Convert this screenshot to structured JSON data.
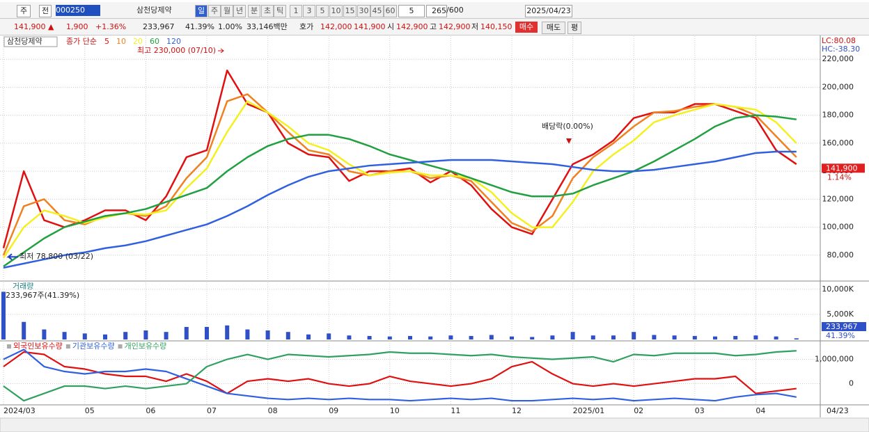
{
  "toolbar": {
    "row1": [
      "주",
      "전",
      "000250",
      "삼천당제약",
      "일",
      "주",
      "월",
      "년",
      "분",
      "초",
      "틱",
      "1",
      "3",
      "5",
      "10",
      "15",
      "30",
      "45",
      "60",
      "5",
      "265",
      "/600",
      "2025/04/23"
    ],
    "row2": [
      "141,900 ▲",
      "1,900",
      "+1.36%",
      "233,967",
      "41.39%",
      "1.00%",
      "33,146백만",
      "호가",
      "142,000",
      "141,900",
      "시",
      "142,900",
      "고",
      "142,900",
      "저",
      "140,150",
      "매수",
      "매도",
      "평"
    ]
  },
  "chart_data": [
    {
      "type": "line",
      "title": "삼천당제약",
      "legend_title": "종가 단순",
      "lc": "LC:80.08",
      "hc": "HC:-38.30",
      "annotations": {
        "high": {
          "value": 230000,
          "label": "최고 230,000 (07/10)"
        },
        "low": {
          "value": 78800,
          "label": "최저 78,800 (03/22)"
        },
        "dividend": "배당락(0.00%)"
      },
      "price_tag": {
        "value": 141900,
        "label": "141,900"
      },
      "change_tag": "1.14%",
      "ylim": [
        62000,
        236500
      ],
      "yticks": [
        {
          "value": 80000,
          "label": "80,000"
        },
        {
          "value": 100000,
          "label": "100,000"
        },
        {
          "value": 120000,
          "label": "120,000"
        },
        {
          "value": 140000,
          "label": "140,000"
        },
        {
          "value": 160000,
          "label": "160,000"
        },
        {
          "value": 180000,
          "label": "180,000"
        },
        {
          "value": 200000,
          "label": "200,000"
        },
        {
          "value": 220000,
          "label": "220,000"
        }
      ],
      "series": [
        {
          "name": "5",
          "color": "#e01010",
          "values": [
            85000,
            140000,
            105000,
            100000,
            105000,
            112000,
            112000,
            105000,
            122000,
            150000,
            155000,
            212000,
            188000,
            182000,
            160000,
            152000,
            150000,
            133000,
            140000,
            140000,
            142000,
            132000,
            140000,
            130000,
            113000,
            100000,
            95000,
            120000,
            145000,
            152000,
            162000,
            178000,
            182000,
            182000,
            188000,
            188000,
            183000,
            178000,
            155000,
            145000
          ]
        },
        {
          "name": "10",
          "color": "#f08020",
          "values": [
            80000,
            115000,
            120000,
            105000,
            102000,
            108000,
            110000,
            108000,
            115000,
            135000,
            150000,
            190000,
            195000,
            182000,
            168000,
            155000,
            152000,
            140000,
            137000,
            140000,
            140000,
            135000,
            137000,
            133000,
            118000,
            103000,
            97000,
            108000,
            135000,
            150000,
            160000,
            172000,
            182000,
            183000,
            186000,
            188000,
            186000,
            180000,
            165000,
            150000
          ]
        },
        {
          "name": "20",
          "color": "#f4f020",
          "values": [
            78000,
            100000,
            112000,
            108000,
            103000,
            107000,
            110000,
            109000,
            112000,
            128000,
            142000,
            168000,
            190000,
            182000,
            172000,
            160000,
            155000,
            145000,
            137000,
            139000,
            140000,
            137000,
            137000,
            135000,
            125000,
            110000,
            100000,
            100000,
            118000,
            140000,
            152000,
            162000,
            175000,
            180000,
            184000,
            188000,
            186000,
            184000,
            175000,
            160000
          ]
        },
        {
          "name": "60",
          "color": "#20a040",
          "values": [
            72000,
            82000,
            92000,
            100000,
            104000,
            108000,
            110000,
            113000,
            118000,
            123000,
            128000,
            140000,
            150000,
            158000,
            163000,
            166000,
            166000,
            163000,
            158000,
            152000,
            148000,
            144000,
            140000,
            135000,
            130000,
            125000,
            122000,
            122000,
            124000,
            130000,
            135000,
            140000,
            147000,
            155000,
            163000,
            172000,
            178000,
            180000,
            179000,
            177000
          ]
        },
        {
          "name": "120",
          "color": "#3060e0",
          "values": [
            71000,
            74000,
            77000,
            80000,
            82000,
            85000,
            87000,
            90000,
            94000,
            98000,
            102000,
            108000,
            115000,
            123000,
            130000,
            136000,
            140000,
            142000,
            144000,
            145000,
            146000,
            147000,
            148000,
            148000,
            148000,
            147000,
            146000,
            145000,
            143000,
            141000,
            140000,
            140000,
            141000,
            143000,
            145000,
            147000,
            150000,
            153000,
            154000,
            154000
          ]
        }
      ]
    },
    {
      "type": "bar",
      "title": "거래량",
      "subtitle": "233,967주(41.39%)",
      "last_label": "233,967",
      "last_ratio": "41.39%",
      "color": "#3050c8",
      "ylim": [
        0,
        11500
      ],
      "yticks": [
        {
          "value": 5000,
          "label": "5,000K"
        },
        {
          "value": 10000,
          "label": "10,000K"
        }
      ],
      "values": [
        9500,
        3500,
        2000,
        1500,
        1200,
        1000,
        1500,
        1800,
        1500,
        2500,
        2500,
        2800,
        2000,
        1800,
        1500,
        1000,
        1200,
        800,
        700,
        600,
        700,
        600,
        800,
        700,
        900,
        600,
        500,
        800,
        1500,
        800,
        800,
        1500,
        900,
        800,
        700,
        600,
        700,
        800,
        600,
        233.967
      ]
    },
    {
      "type": "line",
      "end_date": "04/23",
      "x": [
        "2024/03",
        null,
        null,
        null,
        "05",
        null,
        null,
        "06",
        null,
        null,
        "07",
        null,
        null,
        "08",
        null,
        null,
        "09",
        null,
        null,
        "10",
        null,
        null,
        "11",
        null,
        null,
        "12",
        null,
        null,
        "2025/01",
        null,
        null,
        "02",
        null,
        null,
        "03",
        null,
        null,
        "04",
        null,
        null
      ],
      "ylim": [
        -870000,
        1700000
      ],
      "yticks": [
        0,
        {
          "value": 1000000,
          "label": "1,000,000"
        }
      ],
      "series": [
        {
          "name": "외국인보유수량",
          "color": "#e01010",
          "values": [
            700000,
            1300000,
            1200000,
            700000,
            600000,
            400000,
            300000,
            300000,
            100000,
            400000,
            100000,
            -400000,
            100000,
            200000,
            100000,
            200000,
            0,
            -100000,
            0,
            300000,
            100000,
            0,
            -100000,
            0,
            200000,
            700000,
            900000,
            400000,
            0,
            -100000,
            0,
            -100000,
            0,
            100000,
            200000,
            200000,
            300000,
            -400000,
            -300000,
            -200000
          ]
        },
        {
          "name": "기관보유수량",
          "color": "#3060e0",
          "values": [
            1000000,
            1400000,
            700000,
            500000,
            400000,
            500000,
            500000,
            600000,
            500000,
            200000,
            -100000,
            -400000,
            -500000,
            -600000,
            -650000,
            -600000,
            -650000,
            -600000,
            -650000,
            -650000,
            -700000,
            -650000,
            -600000,
            -650000,
            -600000,
            -700000,
            -700000,
            -650000,
            -600000,
            -650000,
            -600000,
            -700000,
            -650000,
            -600000,
            -650000,
            -700000,
            -550000,
            -450000,
            -400000,
            -550000
          ]
        },
        {
          "name": "개인보유수량",
          "color": "#30a060",
          "values": [
            -100000,
            -700000,
            -400000,
            -100000,
            -100000,
            -200000,
            -100000,
            -200000,
            -100000,
            0,
            700000,
            1000000,
            1200000,
            1000000,
            1200000,
            1150000,
            1100000,
            1150000,
            1200000,
            1300000,
            1250000,
            1250000,
            1200000,
            1150000,
            1200000,
            1100000,
            1050000,
            1000000,
            1050000,
            1100000,
            900000,
            1200000,
            1150000,
            1250000,
            1250000,
            1250000,
            1150000,
            1200000,
            1300000,
            1350000
          ]
        }
      ]
    }
  ]
}
